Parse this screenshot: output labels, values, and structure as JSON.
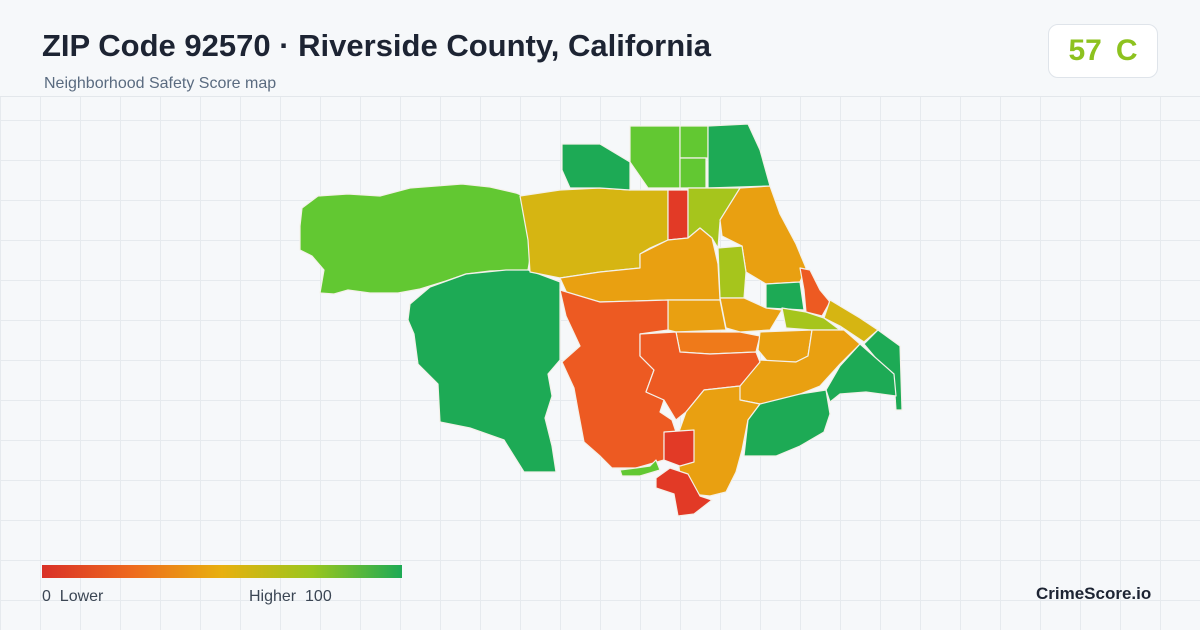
{
  "header": {
    "title": "ZIP Code 92570 · Riverside County, California",
    "subtitle": "Neighborhood Safety Score map"
  },
  "score": {
    "value": "57",
    "grade": "C",
    "color": "#8dc21f"
  },
  "legend": {
    "low_value": "0",
    "low_label": "Lower",
    "high_label": "Higher",
    "high_value": "100",
    "gradient": [
      "#d93027",
      "#ee6a1e",
      "#e8b00f",
      "#9ac61e",
      "#1daa55"
    ]
  },
  "brand": "CrimeScore.io",
  "map": {
    "region_colors": {
      "score_green": "#1daa55",
      "score_light_green": "#62c832",
      "score_yellow": "#d6b512",
      "score_amber": "#e9a011",
      "score_orange": "#ef7a1a",
      "score_red_orange": "#ed5a22",
      "score_red": "#e23a26",
      "score_yellow_green": "#a6c51c"
    }
  }
}
